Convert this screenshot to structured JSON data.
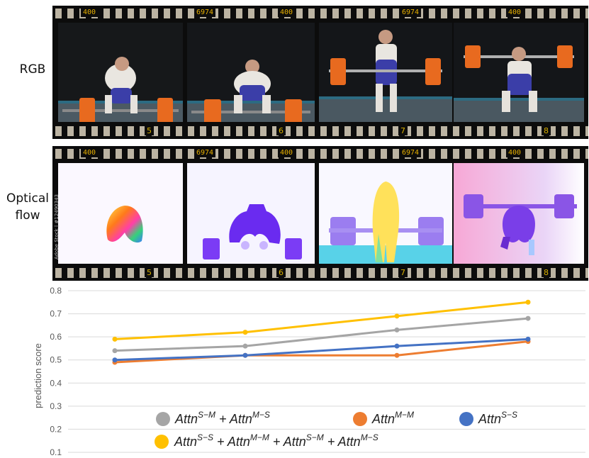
{
  "rows": {
    "rgb_label": "RGB",
    "flow_label_line1": "Optical",
    "flow_label_line2": "flow"
  },
  "film": {
    "edge_numbers": [
      "400",
      "6974",
      "400",
      "6974",
      "400"
    ],
    "frame_numbers": [
      "5",
      "6",
      "7",
      "8"
    ],
    "watermark": "Adobe Stock | #12490343"
  },
  "colors": {
    "gray": "#a5a5a5",
    "orange": "#ed7d31",
    "blue": "#4472c4",
    "yellow": "#ffc000",
    "gridline": "#d9d9d9",
    "tick": "#595959"
  },
  "chart_data": {
    "type": "line",
    "ylabel": "prediction score",
    "xlabel": "",
    "title": "",
    "x": [
      1,
      2,
      3,
      4
    ],
    "ylim": [
      0.1,
      0.8
    ],
    "yticks": [
      "0.1",
      "0.2",
      "0.3",
      "0.4",
      "0.5",
      "0.6",
      "0.7",
      "0.8"
    ],
    "grid": true,
    "legend_position": "bottom-inside",
    "series": [
      {
        "name": "Attn^{S-M} + Attn^{M-S}",
        "color": "#a5a5a5",
        "values": [
          0.54,
          0.56,
          0.63,
          0.68
        ]
      },
      {
        "name": "Attn^{M-M}",
        "color": "#ed7d31",
        "values": [
          0.49,
          0.52,
          0.52,
          0.58
        ]
      },
      {
        "name": "Attn^{S-S}",
        "color": "#4472c4",
        "values": [
          0.5,
          0.52,
          0.56,
          0.59
        ]
      },
      {
        "name": "Attn^{S-S} + Attn^{M-M} + Attn^{S-M} + Attn^{M-S}",
        "color": "#ffc000",
        "values": [
          0.59,
          0.62,
          0.69,
          0.75
        ]
      }
    ]
  }
}
